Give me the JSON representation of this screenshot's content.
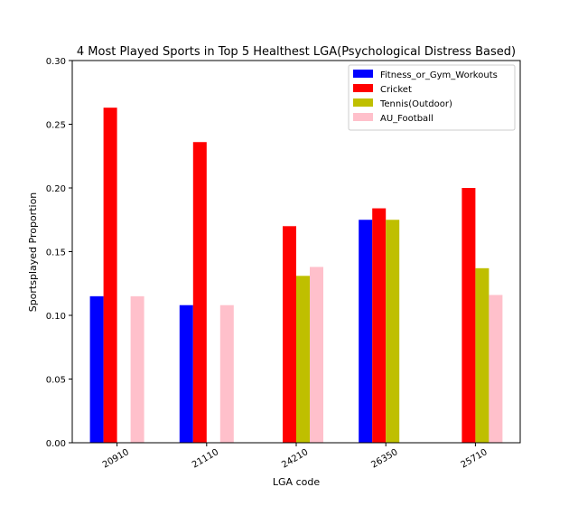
{
  "chart_data": {
    "type": "bar",
    "title": "4 Most Played Sports in Top 5 Healthest LGA(Psychological Distress Based)",
    "xlabel": "LGA code",
    "ylabel": "Sportsplayed Proportion",
    "ylim": [
      0,
      0.3
    ],
    "yticks": [
      "0.00",
      "0.05",
      "0.10",
      "0.15",
      "0.20",
      "0.25",
      "0.30"
    ],
    "categories": [
      "20910",
      "21110",
      "24210",
      "26350",
      "25710"
    ],
    "legend_position": "top-right",
    "grid": false,
    "series": [
      {
        "name": "Fitness_or_Gym_Workouts",
        "color": "#0000ff",
        "values": [
          0.115,
          0.108,
          0,
          0.175,
          0
        ]
      },
      {
        "name": "Cricket",
        "color": "#ff0000",
        "values": [
          0.263,
          0.236,
          0.17,
          0.184,
          0.2
        ]
      },
      {
        "name": "Tennis(Outdoor)",
        "color": "#bfbf00",
        "values": [
          0,
          0,
          0.131,
          0.175,
          0.137
        ]
      },
      {
        "name": "AU_Football",
        "color": "#ffc0cb",
        "values": [
          0.115,
          0.108,
          0.138,
          0,
          0.116
        ]
      }
    ]
  }
}
